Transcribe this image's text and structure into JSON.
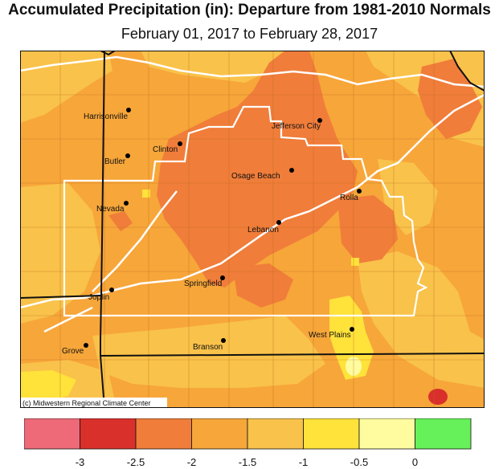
{
  "title": "Accumulated Precipitation (in): Departure from 1981-2010 Normals",
  "subtitle": "February 01, 2017 to February 28, 2017",
  "credit": "(c) Midwestern Regional Climate Center",
  "colors": {
    "base": "#F7A63A",
    "deficit_2_2_5": "#F07D3A",
    "deficit_1_1_5": "#F9C24A",
    "deficit_0_5_1": "#FFE23A",
    "deficit_0_0_5": "#FFFCA0",
    "deficit_2_5_3": "#D9302C",
    "roads": "#FFFFFF",
    "borders": "#111111"
  },
  "cities": [
    {
      "name": "Harrisonville"
    },
    {
      "name": "Clinton"
    },
    {
      "name": "Butler"
    },
    {
      "name": "Nevada"
    },
    {
      "name": "Jefferson City"
    },
    {
      "name": "Osage Beach"
    },
    {
      "name": "Rolla"
    },
    {
      "name": "Lebanon"
    },
    {
      "name": "Springfield"
    },
    {
      "name": "Joplin"
    },
    {
      "name": "West Plains"
    },
    {
      "name": "Branson"
    },
    {
      "name": "Grove"
    }
  ],
  "legend": {
    "colors": [
      "#EE6A78",
      "#D9302C",
      "#F07D3A",
      "#F7A63A",
      "#F9C24A",
      "#FFE23A",
      "#FFFCA0",
      "#66F05A"
    ],
    "ticks": [
      "-3",
      "-2.5",
      "-2",
      "-1.5",
      "-1",
      "-0.5",
      "0"
    ]
  }
}
